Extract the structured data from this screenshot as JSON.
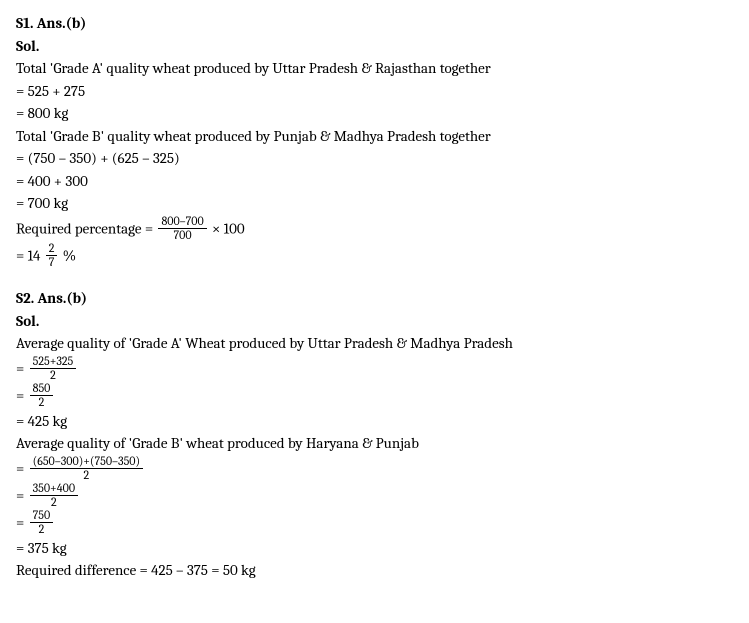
{
  "s1": {
    "header": "S1. Ans.(b)",
    "sol_label": "Sol.",
    "line1": "Total 'Grade A' quality wheat produced by Uttar Pradesh & Rajasthan together",
    "line2": "= 525 + 275",
    "line3": "= 800 kg",
    "line4": "Total 'Grade B' quality wheat produced by Punjab & Madhya Pradesh together",
    "line5": "= (750 – 350) + (625 – 325)",
    "line6": "= 400 + 300",
    "line7": "= 700 kg",
    "perc_label": "Required percentage = ",
    "perc_num": "800–700",
    "perc_den": "700",
    "perc_tail": " × 100",
    "result_prefix": "= 14",
    "result_frac_num": "2",
    "result_frac_den": "7",
    "result_suffix": " %"
  },
  "s2": {
    "header": "S2. Ans.(b)",
    "sol_label": "Sol.",
    "line1": "Average quality of 'Grade A' Wheat produced by Uttar Pradesh & Madhya Pradesh",
    "eq": "= ",
    "f1_num": "525+325",
    "f1_den": "2",
    "f2_num": "850",
    "f2_den": "2",
    "line2": "= 425 kg",
    "line3": "Average quality of 'Grade B' wheat produced by Haryana & Punjab",
    "f3_num": "(650–300)+(750–350)",
    "f3_den": "2",
    "f4_num": "350+400",
    "f4_den": "2",
    "f5_num": "750",
    "f5_den": "2",
    "line4": "= 375 kg",
    "line5": "Required difference = 425 – 375 = 50 kg"
  }
}
